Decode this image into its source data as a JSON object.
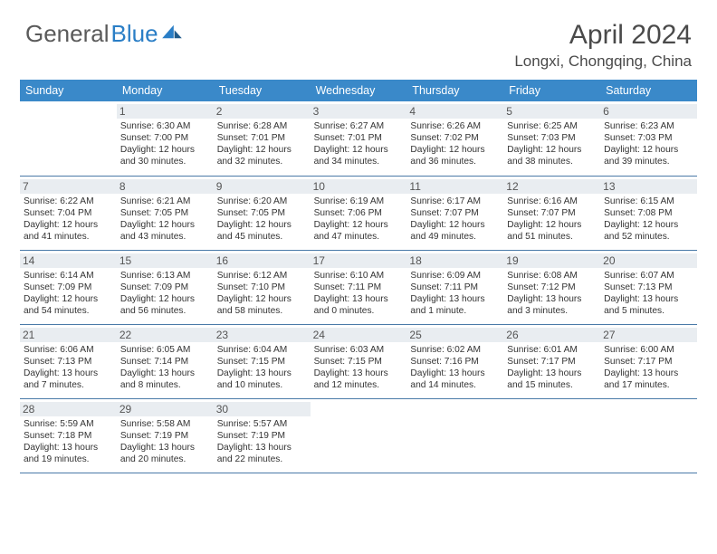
{
  "logo": {
    "text1": "General",
    "text2": "Blue"
  },
  "title": "April 2024",
  "location": "Longxi, Chongqing, China",
  "colors": {
    "header_bg": "#3a89c9",
    "header_text": "#ffffff",
    "daynum_bg": "#e9edf1",
    "rule": "#4a7aa8",
    "body_text": "#333333",
    "title_text": "#4a4a4a"
  },
  "day_labels": [
    "Sunday",
    "Monday",
    "Tuesday",
    "Wednesday",
    "Thursday",
    "Friday",
    "Saturday"
  ],
  "weeks": [
    [
      {
        "n": "",
        "sr": "",
        "ss": "",
        "dl": ""
      },
      {
        "n": "1",
        "sr": "6:30 AM",
        "ss": "7:00 PM",
        "dl": "12 hours and 30 minutes."
      },
      {
        "n": "2",
        "sr": "6:28 AM",
        "ss": "7:01 PM",
        "dl": "12 hours and 32 minutes."
      },
      {
        "n": "3",
        "sr": "6:27 AM",
        "ss": "7:01 PM",
        "dl": "12 hours and 34 minutes."
      },
      {
        "n": "4",
        "sr": "6:26 AM",
        "ss": "7:02 PM",
        "dl": "12 hours and 36 minutes."
      },
      {
        "n": "5",
        "sr": "6:25 AM",
        "ss": "7:03 PM",
        "dl": "12 hours and 38 minutes."
      },
      {
        "n": "6",
        "sr": "6:23 AM",
        "ss": "7:03 PM",
        "dl": "12 hours and 39 minutes."
      }
    ],
    [
      {
        "n": "7",
        "sr": "6:22 AM",
        "ss": "7:04 PM",
        "dl": "12 hours and 41 minutes."
      },
      {
        "n": "8",
        "sr": "6:21 AM",
        "ss": "7:05 PM",
        "dl": "12 hours and 43 minutes."
      },
      {
        "n": "9",
        "sr": "6:20 AM",
        "ss": "7:05 PM",
        "dl": "12 hours and 45 minutes."
      },
      {
        "n": "10",
        "sr": "6:19 AM",
        "ss": "7:06 PM",
        "dl": "12 hours and 47 minutes."
      },
      {
        "n": "11",
        "sr": "6:17 AM",
        "ss": "7:07 PM",
        "dl": "12 hours and 49 minutes."
      },
      {
        "n": "12",
        "sr": "6:16 AM",
        "ss": "7:07 PM",
        "dl": "12 hours and 51 minutes."
      },
      {
        "n": "13",
        "sr": "6:15 AM",
        "ss": "7:08 PM",
        "dl": "12 hours and 52 minutes."
      }
    ],
    [
      {
        "n": "14",
        "sr": "6:14 AM",
        "ss": "7:09 PM",
        "dl": "12 hours and 54 minutes."
      },
      {
        "n": "15",
        "sr": "6:13 AM",
        "ss": "7:09 PM",
        "dl": "12 hours and 56 minutes."
      },
      {
        "n": "16",
        "sr": "6:12 AM",
        "ss": "7:10 PM",
        "dl": "12 hours and 58 minutes."
      },
      {
        "n": "17",
        "sr": "6:10 AM",
        "ss": "7:11 PM",
        "dl": "13 hours and 0 minutes."
      },
      {
        "n": "18",
        "sr": "6:09 AM",
        "ss": "7:11 PM",
        "dl": "13 hours and 1 minute."
      },
      {
        "n": "19",
        "sr": "6:08 AM",
        "ss": "7:12 PM",
        "dl": "13 hours and 3 minutes."
      },
      {
        "n": "20",
        "sr": "6:07 AM",
        "ss": "7:13 PM",
        "dl": "13 hours and 5 minutes."
      }
    ],
    [
      {
        "n": "21",
        "sr": "6:06 AM",
        "ss": "7:13 PM",
        "dl": "13 hours and 7 minutes."
      },
      {
        "n": "22",
        "sr": "6:05 AM",
        "ss": "7:14 PM",
        "dl": "13 hours and 8 minutes."
      },
      {
        "n": "23",
        "sr": "6:04 AM",
        "ss": "7:15 PM",
        "dl": "13 hours and 10 minutes."
      },
      {
        "n": "24",
        "sr": "6:03 AM",
        "ss": "7:15 PM",
        "dl": "13 hours and 12 minutes."
      },
      {
        "n": "25",
        "sr": "6:02 AM",
        "ss": "7:16 PM",
        "dl": "13 hours and 14 minutes."
      },
      {
        "n": "26",
        "sr": "6:01 AM",
        "ss": "7:17 PM",
        "dl": "13 hours and 15 minutes."
      },
      {
        "n": "27",
        "sr": "6:00 AM",
        "ss": "7:17 PM",
        "dl": "13 hours and 17 minutes."
      }
    ],
    [
      {
        "n": "28",
        "sr": "5:59 AM",
        "ss": "7:18 PM",
        "dl": "13 hours and 19 minutes."
      },
      {
        "n": "29",
        "sr": "5:58 AM",
        "ss": "7:19 PM",
        "dl": "13 hours and 20 minutes."
      },
      {
        "n": "30",
        "sr": "5:57 AM",
        "ss": "7:19 PM",
        "dl": "13 hours and 22 minutes."
      },
      {
        "n": "",
        "sr": "",
        "ss": "",
        "dl": ""
      },
      {
        "n": "",
        "sr": "",
        "ss": "",
        "dl": ""
      },
      {
        "n": "",
        "sr": "",
        "ss": "",
        "dl": ""
      },
      {
        "n": "",
        "sr": "",
        "ss": "",
        "dl": ""
      }
    ]
  ]
}
